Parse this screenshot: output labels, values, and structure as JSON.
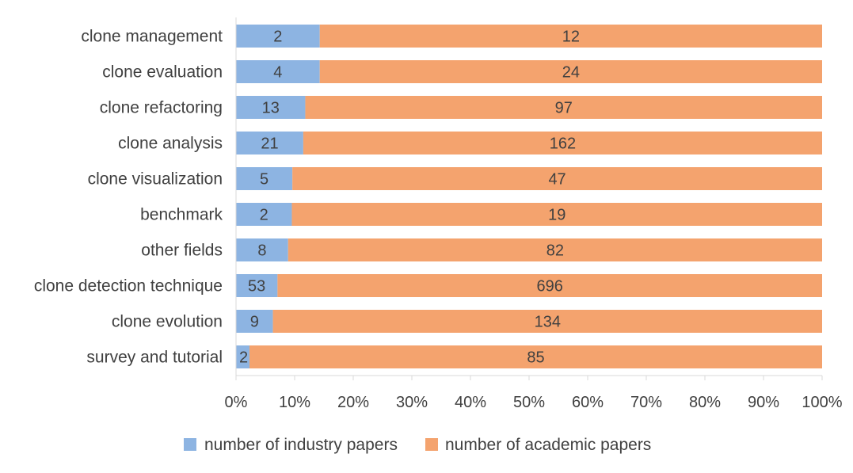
{
  "chart_data": {
    "type": "bar",
    "orientation": "horizontal",
    "stacked": "percent",
    "categories": [
      "clone management",
      "clone evaluation",
      "clone refactoring",
      "clone analysis",
      "clone visualization",
      "benchmark",
      "other fields",
      "clone detection technique",
      "clone evolution",
      "survey and tutorial"
    ],
    "series": [
      {
        "name": "number of industry papers",
        "color": "#8DB4E2",
        "values": [
          2,
          4,
          13,
          21,
          5,
          2,
          8,
          53,
          9,
          2
        ]
      },
      {
        "name": "number of academic papers",
        "color": "#F4A36E",
        "values": [
          12,
          24,
          97,
          162,
          47,
          19,
          82,
          696,
          134,
          85
        ]
      }
    ],
    "xaxis": {
      "ticks": [
        "0%",
        "10%",
        "20%",
        "30%",
        "40%",
        "50%",
        "60%",
        "70%",
        "80%",
        "90%",
        "100%"
      ],
      "range": [
        0,
        100
      ]
    },
    "title": "",
    "xlabel": "",
    "ylabel": "",
    "legend_position": "bottom",
    "grid": false
  }
}
